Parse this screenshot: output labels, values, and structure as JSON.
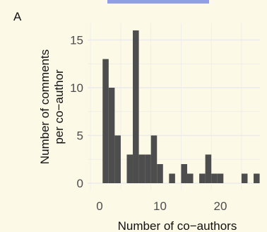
{
  "panel": {
    "label": "A"
  },
  "colors": {
    "background": "#fcf9e6",
    "grid": "#ebebeb",
    "bar": "#4d4d4d",
    "top_bar": "#8f9fdf"
  },
  "chart_data": {
    "type": "bar",
    "xlabel": "Number of co−authors",
    "ylabel": [
      "Number of comments",
      "per co−author"
    ],
    "xlim": [
      0,
      27
    ],
    "ylim": [
      0,
      17
    ],
    "xticks": [
      0,
      10,
      20
    ],
    "yticks": [
      0,
      5,
      10,
      15
    ],
    "grid": true,
    "bins": [
      {
        "x": 1,
        "count": 13
      },
      {
        "x": 2,
        "count": 10
      },
      {
        "x": 3,
        "count": 5
      },
      {
        "x": 4,
        "count": 0
      },
      {
        "x": 5,
        "count": 3
      },
      {
        "x": 6,
        "count": 16
      },
      {
        "x": 7,
        "count": 3
      },
      {
        "x": 8,
        "count": 3
      },
      {
        "x": 9,
        "count": 5
      },
      {
        "x": 10,
        "count": 2
      },
      {
        "x": 11,
        "count": 0
      },
      {
        "x": 12,
        "count": 1
      },
      {
        "x": 13,
        "count": 0
      },
      {
        "x": 14,
        "count": 2
      },
      {
        "x": 15,
        "count": 1
      },
      {
        "x": 16,
        "count": 0
      },
      {
        "x": 17,
        "count": 1
      },
      {
        "x": 18,
        "count": 3
      },
      {
        "x": 19,
        "count": 1
      },
      {
        "x": 20,
        "count": 1
      },
      {
        "x": 21,
        "count": 0
      },
      {
        "x": 22,
        "count": 0
      },
      {
        "x": 23,
        "count": 0
      },
      {
        "x": 24,
        "count": 1
      },
      {
        "x": 25,
        "count": 0
      },
      {
        "x": 26,
        "count": 1
      }
    ]
  }
}
